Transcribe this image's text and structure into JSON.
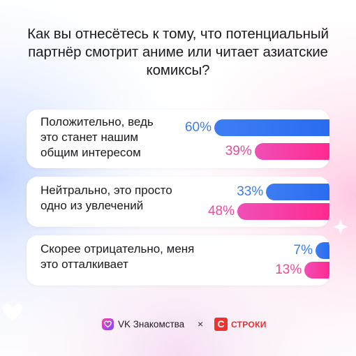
{
  "title": "Как вы отнесётесь к тому, что потенциальный партнёр смотрит аниме или читает азиатские комиксы?",
  "chart_data": {
    "type": "bar",
    "orientation": "horizontal",
    "categories": [
      "Положительно, ведь это станет нашим общим интересом",
      "Нейтрально, это просто одно из увлечений",
      "Скорее отрицательно, меня это отталкивает"
    ],
    "series": [
      {
        "values": [
          60,
          33,
          7
        ],
        "labels": [
          "60%",
          "33%",
          "7%"
        ],
        "color": "#2f71f1"
      },
      {
        "values": [
          39,
          48,
          13
        ],
        "labels": [
          "39%",
          "48%",
          "13%"
        ],
        "color": "#f73f9f"
      }
    ],
    "xlim": [
      0,
      100
    ],
    "grid": false,
    "legend": "none"
  },
  "footer": {
    "brand": "VK Знакомства",
    "separator": "×",
    "partner": "СТРОКИ",
    "partner_letter": "С",
    "brand_icon": "heart-icon"
  }
}
